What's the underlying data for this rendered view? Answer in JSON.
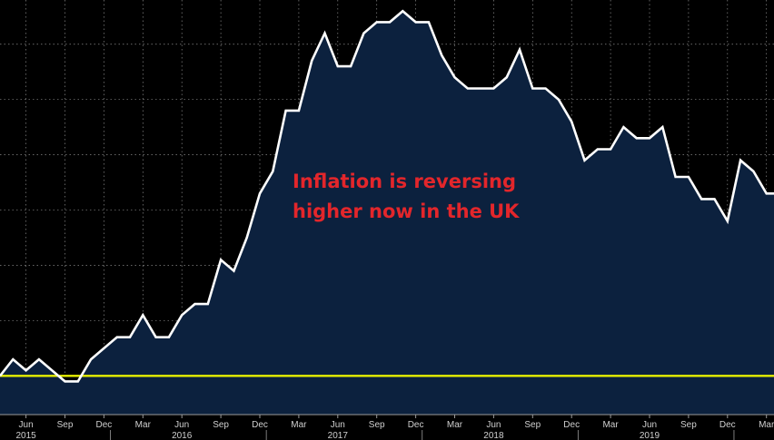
{
  "colors": {
    "background": "#000000",
    "area_fill": "#0c213e",
    "line": "#ffffff",
    "reference_line": "#e8f000",
    "annotation": "#e3262b",
    "grid": "#8a8a8a",
    "axis_text": "#cfcfcf"
  },
  "chart_data": {
    "type": "area",
    "title": "",
    "xlabel": "",
    "ylabel": "",
    "x_ticks": [
      "Jun",
      "Sep",
      "Dec",
      "Mar",
      "Jun",
      "Sep",
      "Dec",
      "Mar",
      "Jun",
      "Sep",
      "Dec",
      "Mar",
      "Jun",
      "Sep",
      "Dec",
      "Mar",
      "Jun",
      "Sep",
      "Dec",
      "Mar"
    ],
    "x_tick_index": [
      2,
      5,
      8,
      11,
      14,
      17,
      20,
      23,
      26,
      29,
      32,
      35,
      38,
      41,
      44,
      47,
      50,
      53,
      56,
      59
    ],
    "years": [
      {
        "label": "2015",
        "index": 2
      },
      {
        "label": "2016",
        "index": 14
      },
      {
        "label": "2017",
        "index": 26
      },
      {
        "label": "2018",
        "index": 38
      },
      {
        "label": "2019",
        "index": 50
      }
    ],
    "series": [
      {
        "values": [
          0.0,
          0.3,
          0.1,
          0.3,
          0.1,
          -0.1,
          -0.1,
          0.3,
          0.5,
          0.7,
          0.7,
          1.1,
          0.7,
          0.7,
          1.1,
          1.3,
          1.3,
          2.1,
          1.9,
          2.5,
          3.3,
          3.7,
          4.8,
          4.8,
          5.7,
          6.2,
          5.6,
          5.6,
          6.2,
          6.4,
          6.4,
          6.6,
          6.4,
          6.4,
          5.8,
          5.4,
          5.2,
          5.2,
          5.2,
          5.4,
          5.9,
          5.2,
          5.2,
          5.0,
          4.6,
          3.9,
          4.1,
          4.1,
          4.5,
          4.3,
          4.3,
          4.5,
          3.6,
          3.6,
          3.2,
          3.2,
          2.8,
          3.9,
          3.7,
          3.3
        ]
      }
    ],
    "reference_line": 0.0,
    "ylim": [
      -0.7,
      6.8
    ],
    "grid": true,
    "annotations": [
      {
        "lines": [
          "Inflation is reversing",
          "higher now in the UK"
        ]
      }
    ]
  }
}
